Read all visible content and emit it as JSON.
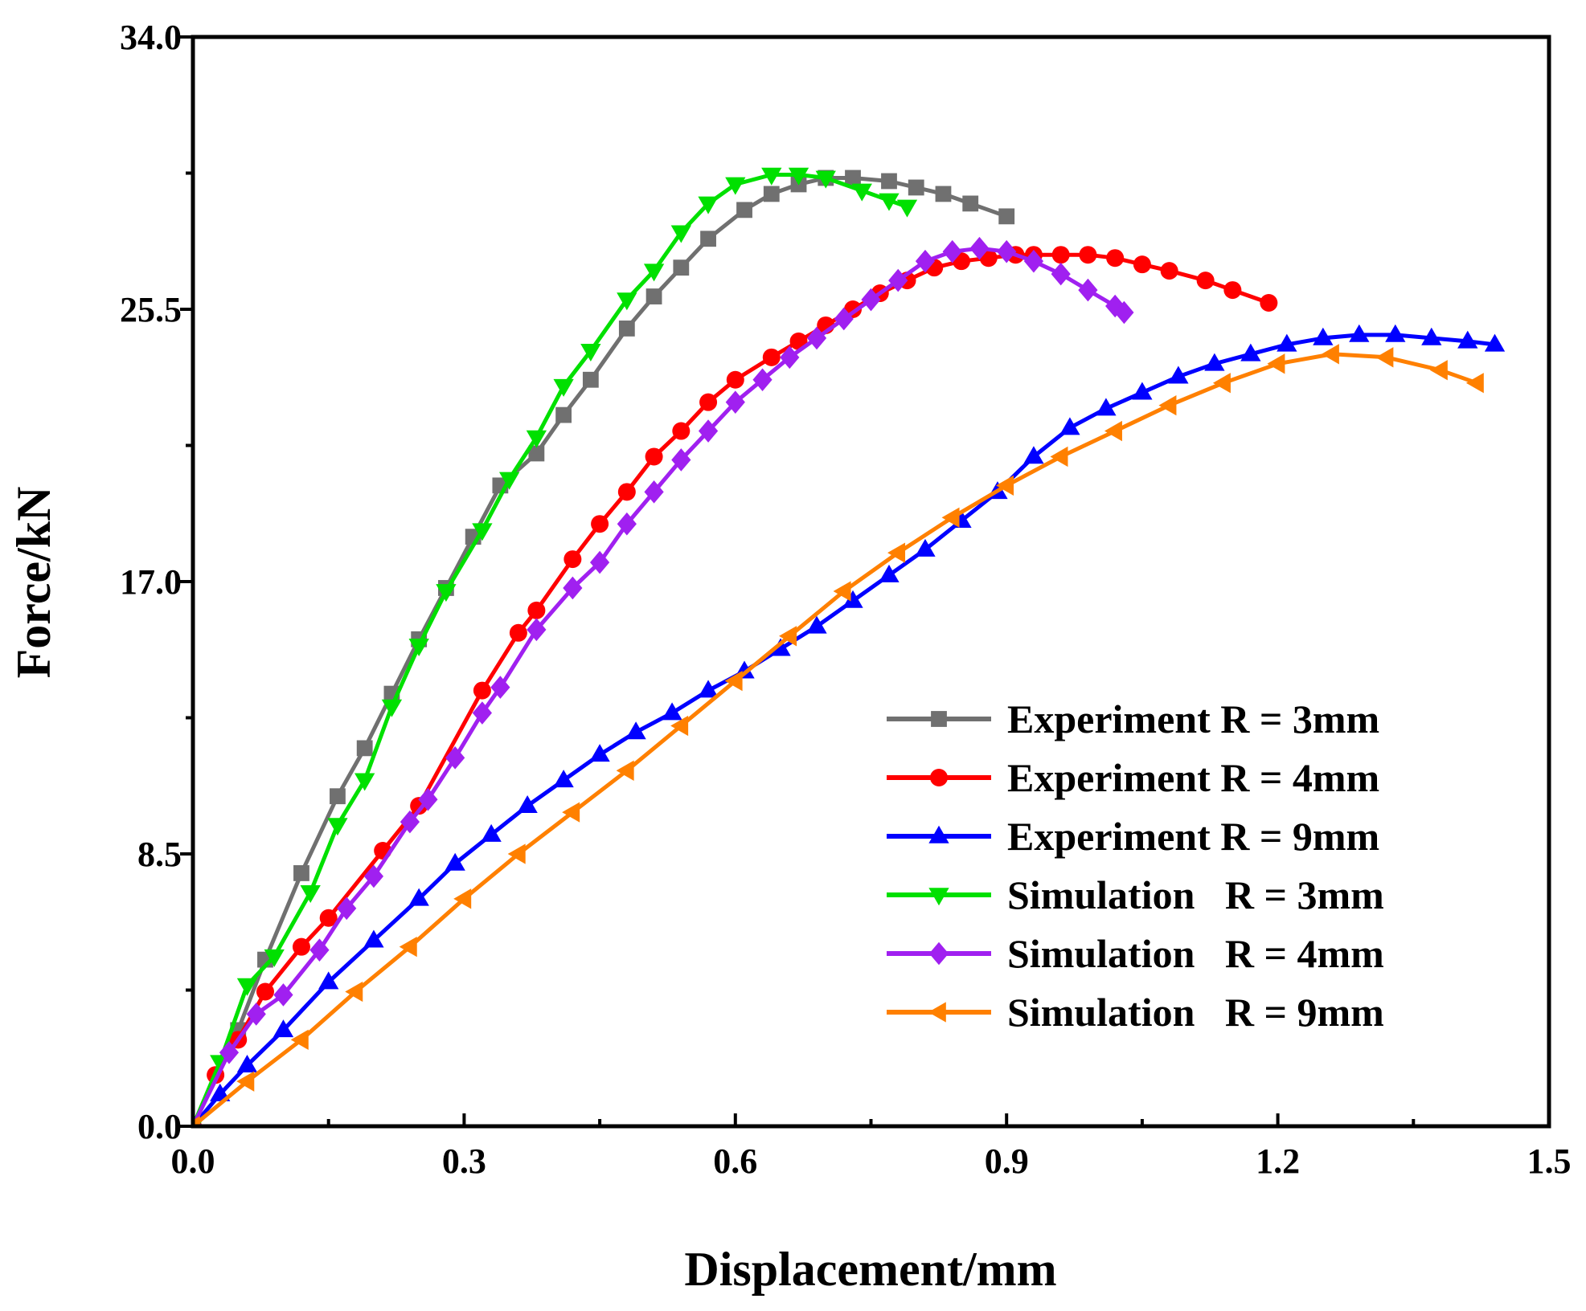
{
  "chart_data": {
    "type": "line",
    "title": "",
    "xlabel": "Displacement/mm",
    "ylabel": "Force/kN",
    "xlim": [
      0,
      1.5
    ],
    "ylim": [
      0,
      34
    ],
    "x_ticks": [
      "0.0",
      "0.3",
      "0.6",
      "0.9",
      "1.2",
      "1.5"
    ],
    "y_ticks": [
      "0.0",
      "8.5",
      "17.0",
      "25.5",
      "34.0"
    ],
    "legend_position": "bottom-right",
    "series": [
      {
        "name": "Experiment R = 3mm",
        "color": "#707070",
        "marker": "square",
        "x": [
          0,
          0.05,
          0.08,
          0.12,
          0.16,
          0.19,
          0.22,
          0.25,
          0.28,
          0.31,
          0.34,
          0.38,
          0.41,
          0.44,
          0.48,
          0.51,
          0.54,
          0.57,
          0.61,
          0.64,
          0.67,
          0.7,
          0.73,
          0.77,
          0.8,
          0.83,
          0.86,
          0.9
        ],
        "y": [
          0,
          3.0,
          5.2,
          7.9,
          10.3,
          11.8,
          13.5,
          15.2,
          16.8,
          18.4,
          20.0,
          21.0,
          22.2,
          23.3,
          24.9,
          25.9,
          26.8,
          27.7,
          28.6,
          29.1,
          29.4,
          29.6,
          29.6,
          29.5,
          29.3,
          29.1,
          28.8,
          28.4
        ]
      },
      {
        "name": "Experiment R = 4mm",
        "color": "#ff0000",
        "marker": "circle",
        "x": [
          0,
          0.025,
          0.05,
          0.08,
          0.12,
          0.15,
          0.21,
          0.25,
          0.32,
          0.36,
          0.38,
          0.42,
          0.45,
          0.48,
          0.51,
          0.54,
          0.57,
          0.6,
          0.64,
          0.67,
          0.7,
          0.73,
          0.76,
          0.79,
          0.82,
          0.85,
          0.88,
          0.91,
          0.93,
          0.96,
          0.99,
          1.02,
          1.05,
          1.08,
          1.12,
          1.15,
          1.19
        ],
        "y": [
          0,
          1.6,
          2.7,
          4.2,
          5.6,
          6.5,
          8.6,
          10.0,
          13.6,
          15.4,
          16.1,
          17.7,
          18.8,
          19.8,
          20.9,
          21.7,
          22.6,
          23.3,
          24.0,
          24.5,
          25.0,
          25.5,
          26.0,
          26.4,
          26.8,
          27.0,
          27.1,
          27.2,
          27.2,
          27.2,
          27.2,
          27.1,
          26.9,
          26.7,
          26.4,
          26.1,
          25.7
        ]
      },
      {
        "name": "Experiment R = 9mm",
        "color": "#0000ff",
        "marker": "triangle-up",
        "x": [
          0,
          0.03,
          0.06,
          0.1,
          0.15,
          0.2,
          0.25,
          0.29,
          0.33,
          0.37,
          0.41,
          0.45,
          0.49,
          0.53,
          0.57,
          0.61,
          0.65,
          0.69,
          0.73,
          0.77,
          0.81,
          0.85,
          0.89,
          0.93,
          0.97,
          1.01,
          1.05,
          1.09,
          1.13,
          1.17,
          1.21,
          1.25,
          1.29,
          1.33,
          1.37,
          1.41,
          1.44
        ],
        "y": [
          0,
          1.0,
          1.9,
          3.0,
          4.5,
          5.8,
          7.1,
          8.2,
          9.1,
          10.0,
          10.8,
          11.6,
          12.3,
          12.9,
          13.6,
          14.2,
          14.9,
          15.6,
          16.4,
          17.2,
          18.0,
          18.9,
          19.8,
          20.9,
          21.8,
          22.4,
          22.9,
          23.4,
          23.8,
          24.1,
          24.4,
          24.6,
          24.7,
          24.7,
          24.6,
          24.5,
          24.4
        ]
      },
      {
        "name": "Simulation   R = 3mm",
        "color": "#00e000",
        "marker": "triangle-down",
        "x": [
          0,
          0.03,
          0.06,
          0.09,
          0.13,
          0.16,
          0.19,
          0.22,
          0.25,
          0.28,
          0.32,
          0.35,
          0.38,
          0.41,
          0.44,
          0.48,
          0.51,
          0.54,
          0.57,
          0.6,
          0.64,
          0.67,
          0.7,
          0.74,
          0.77,
          0.79
        ],
        "y": [
          0,
          2.0,
          4.4,
          5.3,
          7.3,
          9.4,
          10.8,
          13.1,
          15.0,
          16.7,
          18.6,
          20.2,
          21.5,
          23.1,
          24.2,
          25.8,
          26.7,
          27.9,
          28.8,
          29.4,
          29.7,
          29.7,
          29.6,
          29.2,
          28.9,
          28.7
        ]
      },
      {
        "name": "Simulation   R = 4mm",
        "color": "#a020f0",
        "marker": "diamond",
        "x": [
          0,
          0.04,
          0.07,
          0.1,
          0.14,
          0.17,
          0.2,
          0.24,
          0.26,
          0.29,
          0.32,
          0.34,
          0.38,
          0.42,
          0.45,
          0.48,
          0.51,
          0.54,
          0.57,
          0.6,
          0.63,
          0.66,
          0.69,
          0.72,
          0.75,
          0.78,
          0.81,
          0.84,
          0.87,
          0.9,
          0.93,
          0.96,
          0.99,
          1.02,
          1.03
        ],
        "y": [
          0,
          2.3,
          3.5,
          4.1,
          5.5,
          6.8,
          7.8,
          9.5,
          10.2,
          11.5,
          12.9,
          13.7,
          15.5,
          16.8,
          17.6,
          18.8,
          19.8,
          20.8,
          21.7,
          22.6,
          23.3,
          24.0,
          24.6,
          25.2,
          25.8,
          26.4,
          27.0,
          27.3,
          27.4,
          27.3,
          27.0,
          26.6,
          26.1,
          25.6,
          25.4
        ]
      },
      {
        "name": "Simulation   R = 9mm",
        "color": "#ff8000",
        "marker": "triangle-left",
        "x": [
          0,
          0.06,
          0.12,
          0.18,
          0.24,
          0.3,
          0.36,
          0.42,
          0.48,
          0.54,
          0.6,
          0.66,
          0.72,
          0.78,
          0.84,
          0.9,
          0.96,
          1.02,
          1.08,
          1.14,
          1.2,
          1.26,
          1.32,
          1.38,
          1.42
        ],
        "y": [
          0,
          1.4,
          2.7,
          4.2,
          5.6,
          7.1,
          8.5,
          9.8,
          11.1,
          12.5,
          13.9,
          15.3,
          16.7,
          17.9,
          19.0,
          20.0,
          20.9,
          21.7,
          22.5,
          23.2,
          23.8,
          24.1,
          24.0,
          23.6,
          23.2
        ]
      }
    ]
  }
}
